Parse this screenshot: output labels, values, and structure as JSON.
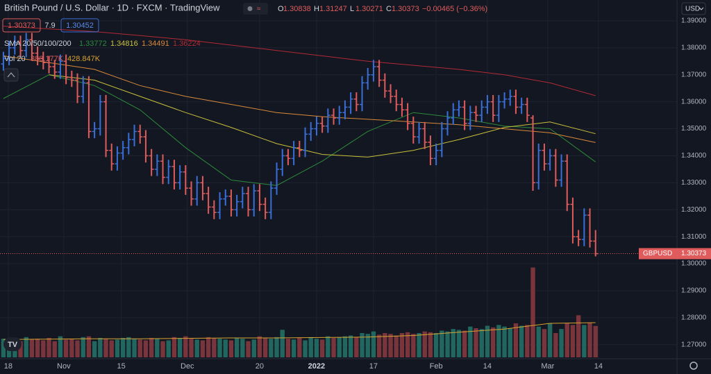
{
  "header": {
    "title": "British Pound / U.S. Dollar · 1D · FXCM · TradingView",
    "ohlc_letters": [
      "O",
      "H",
      "L",
      "C"
    ],
    "change": "−0.00465 (−0.36%)",
    "spread": "7.9",
    "ask": 1.30452
  },
  "chart_data": {
    "type": "ohlc",
    "symbol": "GBPUSD",
    "currency": "USD",
    "xlim": [
      -0.6,
      118.3
    ],
    "xticks": [
      {
        "value": 0.85,
        "label": "18"
      },
      {
        "value": 10.6,
        "label": "Nov"
      },
      {
        "value": 20.7,
        "label": "15"
      },
      {
        "value": 32.3,
        "label": "Dec"
      },
      {
        "value": 45,
        "label": "20"
      },
      {
        "value": 55,
        "label": "2022"
      },
      {
        "value": 65,
        "label": "17"
      },
      {
        "value": 76,
        "label": "Feb"
      },
      {
        "value": 85,
        "label": "14"
      },
      {
        "value": 95.6,
        "label": "Mar"
      },
      {
        "value": 104.5,
        "label": "14"
      }
    ],
    "ylim": [
      1.2648,
      1.3977
    ],
    "yticks": [
      {
        "value": 1.27,
        "label": "1.27000"
      },
      {
        "value": 1.28,
        "label": "1.28000"
      },
      {
        "value": 1.29,
        "label": "1.29000"
      },
      {
        "value": 1.3,
        "label": "1.30000"
      },
      {
        "value": 1.31,
        "label": "1.31000"
      },
      {
        "value": 1.32,
        "label": "1.32000"
      },
      {
        "value": 1.33,
        "label": "1.33000"
      },
      {
        "value": 1.34,
        "label": "1.34000"
      },
      {
        "value": 1.35,
        "label": "1.35000"
      },
      {
        "value": 1.36,
        "label": "1.36000"
      },
      {
        "value": 1.37,
        "label": "1.37000"
      },
      {
        "value": 1.38,
        "label": "1.38000"
      },
      {
        "value": 1.39,
        "label": "1.39000"
      }
    ],
    "up_color": "#3a6fd8",
    "down_color": "#e05c5c",
    "ohlc": [
      [
        1.374,
        1.3785,
        1.3715,
        1.376
      ],
      [
        1.376,
        1.3825,
        1.3735,
        1.38
      ],
      [
        1.38,
        1.3845,
        1.3775,
        1.382
      ],
      [
        1.382,
        1.3845,
        1.3765,
        1.379
      ],
      [
        1.379,
        1.3855,
        1.3765,
        1.383
      ],
      [
        1.383,
        1.3855,
        1.3755,
        1.378
      ],
      [
        1.378,
        1.3805,
        1.3735,
        1.376
      ],
      [
        1.376,
        1.3785,
        1.372,
        1.3745
      ],
      [
        1.3745,
        1.377,
        1.3705,
        1.373
      ],
      [
        1.373,
        1.3755,
        1.3685,
        1.371
      ],
      [
        1.371,
        1.3775,
        1.3685,
        1.375
      ],
      [
        1.375,
        1.3775,
        1.3665,
        1.369
      ],
      [
        1.369,
        1.3715,
        1.3655,
        1.368
      ],
      [
        1.368,
        1.3705,
        1.3595,
        1.362
      ],
      [
        1.362,
        1.3695,
        1.3595,
        1.367
      ],
      [
        1.367,
        1.3695,
        1.3465,
        1.349
      ],
      [
        1.349,
        1.3525,
        1.3465,
        1.35
      ],
      [
        1.35,
        1.3625,
        1.3475,
        1.36
      ],
      [
        1.36,
        1.3625,
        1.3395,
        1.342
      ],
      [
        1.342,
        1.3445,
        1.3345,
        1.337
      ],
      [
        1.337,
        1.3435,
        1.3345,
        1.341
      ],
      [
        1.341,
        1.3455,
        1.3385,
        1.343
      ],
      [
        1.343,
        1.3485,
        1.3405,
        1.346
      ],
      [
        1.346,
        1.3515,
        1.3435,
        1.349
      ],
      [
        1.349,
        1.3515,
        1.3445,
        1.347
      ],
      [
        1.347,
        1.3495,
        1.3375,
        1.34
      ],
      [
        1.34,
        1.3425,
        1.3325,
        1.335
      ],
      [
        1.335,
        1.3405,
        1.3325,
        1.338
      ],
      [
        1.338,
        1.3405,
        1.3295,
        1.332
      ],
      [
        1.332,
        1.3385,
        1.3295,
        1.336
      ],
      [
        1.336,
        1.3385,
        1.3275,
        1.33
      ],
      [
        1.33,
        1.3365,
        1.3275,
        1.334
      ],
      [
        1.334,
        1.3365,
        1.3255,
        1.328
      ],
      [
        1.328,
        1.3305,
        1.3215,
        1.324
      ],
      [
        1.324,
        1.3325,
        1.3215,
        1.33
      ],
      [
        1.33,
        1.3325,
        1.3235,
        1.326
      ],
      [
        1.326,
        1.3285,
        1.3185,
        1.321
      ],
      [
        1.321,
        1.3235,
        1.3165,
        1.319
      ],
      [
        1.319,
        1.3265,
        1.3165,
        1.324
      ],
      [
        1.324,
        1.3275,
        1.3215,
        1.325
      ],
      [
        1.325,
        1.3275,
        1.3175,
        1.32
      ],
      [
        1.32,
        1.3255,
        1.3175,
        1.323
      ],
      [
        1.323,
        1.3285,
        1.3205,
        1.326
      ],
      [
        1.326,
        1.3285,
        1.3175,
        1.32
      ],
      [
        1.32,
        1.3295,
        1.3175,
        1.327
      ],
      [
        1.327,
        1.3295,
        1.3195,
        1.322
      ],
      [
        1.322,
        1.3245,
        1.3165,
        1.319
      ],
      [
        1.319,
        1.3305,
        1.3165,
        1.328
      ],
      [
        1.328,
        1.3375,
        1.3255,
        1.335
      ],
      [
        1.335,
        1.3425,
        1.3325,
        1.34
      ],
      [
        1.34,
        1.3425,
        1.3365,
        1.339
      ],
      [
        1.339,
        1.3455,
        1.3365,
        1.343
      ],
      [
        1.343,
        1.3455,
        1.3395,
        1.342
      ],
      [
        1.342,
        1.3505,
        1.3395,
        1.348
      ],
      [
        1.348,
        1.3525,
        1.3455,
        1.35
      ],
      [
        1.35,
        1.3545,
        1.3475,
        1.352
      ],
      [
        1.352,
        1.3545,
        1.3485,
        1.351
      ],
      [
        1.351,
        1.3575,
        1.3485,
        1.355
      ],
      [
        1.355,
        1.3575,
        1.3515,
        1.354
      ],
      [
        1.354,
        1.3585,
        1.3515,
        1.356
      ],
      [
        1.356,
        1.3605,
        1.3535,
        1.358
      ],
      [
        1.358,
        1.3635,
        1.3555,
        1.361
      ],
      [
        1.361,
        1.3635,
        1.3565,
        1.359
      ],
      [
        1.359,
        1.3695,
        1.3565,
        1.367
      ],
      [
        1.367,
        1.3725,
        1.3645,
        1.37
      ],
      [
        1.37,
        1.3755,
        1.3675,
        1.373
      ],
      [
        1.373,
        1.3755,
        1.3655,
        1.368
      ],
      [
        1.368,
        1.3705,
        1.3615,
        1.364
      ],
      [
        1.364,
        1.3665,
        1.3595,
        1.362
      ],
      [
        1.362,
        1.3645,
        1.3565,
        1.359
      ],
      [
        1.359,
        1.3615,
        1.3545,
        1.357
      ],
      [
        1.357,
        1.3595,
        1.3495,
        1.352
      ],
      [
        1.352,
        1.3545,
        1.3445,
        1.347
      ],
      [
        1.347,
        1.3525,
        1.3445,
        1.35
      ],
      [
        1.35,
        1.3525,
        1.3425,
        1.345
      ],
      [
        1.345,
        1.3475,
        1.3365,
        1.339
      ],
      [
        1.339,
        1.3445,
        1.3365,
        1.342
      ],
      [
        1.342,
        1.3525,
        1.3395,
        1.35
      ],
      [
        1.35,
        1.3565,
        1.3475,
        1.354
      ],
      [
        1.354,
        1.3595,
        1.3515,
        1.357
      ],
      [
        1.357,
        1.3605,
        1.3545,
        1.358
      ],
      [
        1.358,
        1.3605,
        1.3495,
        1.352
      ],
      [
        1.352,
        1.3585,
        1.3495,
        1.356
      ],
      [
        1.356,
        1.3585,
        1.3525,
        1.355
      ],
      [
        1.355,
        1.3605,
        1.3525,
        1.358
      ],
      [
        1.358,
        1.3625,
        1.3555,
        1.36
      ],
      [
        1.36,
        1.3625,
        1.3525,
        1.355
      ],
      [
        1.355,
        1.3625,
        1.3525,
        1.36
      ],
      [
        1.36,
        1.3635,
        1.3575,
        1.361
      ],
      [
        1.361,
        1.3645,
        1.3585,
        1.362
      ],
      [
        1.362,
        1.3645,
        1.3555,
        1.358
      ],
      [
        1.358,
        1.3615,
        1.3555,
        1.359
      ],
      [
        1.359,
        1.3615,
        1.3525,
        1.355
      ],
      [
        1.354,
        1.355,
        1.327,
        1.33
      ],
      [
        1.33,
        1.3445,
        1.3275,
        1.342
      ],
      [
        1.342,
        1.3445,
        1.3345,
        1.337
      ],
      [
        1.337,
        1.3425,
        1.3345,
        1.34
      ],
      [
        1.34,
        1.3425,
        1.3285,
        1.331
      ],
      [
        1.331,
        1.3405,
        1.3285,
        1.338
      ],
      [
        1.338,
        1.3405,
        1.3195,
        1.322
      ],
      [
        1.322,
        1.3245,
        1.3075,
        1.31
      ],
      [
        1.31,
        1.3125,
        1.3065,
        1.309
      ],
      [
        1.309,
        1.3205,
        1.3065,
        1.318
      ],
      [
        1.318,
        1.3205,
        1.306,
        1.3084
      ],
      [
        1.30838,
        1.31247,
        1.30271,
        1.30373
      ]
    ],
    "sma": {
      "legend": "SMA 20/50/100/200",
      "x": [
        0,
        8,
        16,
        24,
        32,
        40,
        48,
        56,
        64,
        72,
        80,
        88,
        96,
        104
      ],
      "series": [
        {
          "color": "#2e8b3a",
          "values": [
            1.3612,
            1.37,
            1.366,
            1.357,
            1.343,
            1.331,
            1.329,
            1.338,
            1.349,
            1.356,
            1.354,
            1.351,
            1.35,
            1.33772
          ]
        },
        {
          "color": "#c9c13a",
          "values": [
            null,
            1.37,
            1.368,
            1.362,
            1.356,
            1.3505,
            1.3445,
            1.3405,
            1.3395,
            1.342,
            1.346,
            1.3505,
            1.3525,
            1.34816
          ]
        },
        {
          "color": "#d98a3a",
          "values": [
            1.377,
            1.3745,
            1.372,
            1.366,
            1.362,
            1.359,
            1.356,
            1.3545,
            1.3535,
            1.3525,
            1.3515,
            1.35,
            1.3485,
            1.34491
          ]
        },
        {
          "color": "#b22a35",
          "values": [
            1.388,
            1.387,
            1.386,
            1.3845,
            1.383,
            1.381,
            1.379,
            1.377,
            1.375,
            1.3735,
            1.372,
            1.37,
            1.367,
            1.36224
          ]
        }
      ]
    },
    "volume": {
      "legend": "Vol 20",
      "lim": [
        0,
        1200
      ],
      "up_color": "#22675f",
      "down_color": "#7a343c",
      "ma_color": "#d9a22e",
      "value_label": "388.177K",
      "ma_label": "428.847K",
      "values": [
        230,
        210,
        240,
        200,
        250,
        220,
        230,
        210,
        240,
        200,
        260,
        220,
        230,
        210,
        250,
        260,
        200,
        240,
        230,
        210,
        220,
        240,
        250,
        230,
        220,
        210,
        240,
        230,
        200,
        210,
        250,
        240,
        260,
        230,
        220,
        210,
        250,
        240,
        230,
        220,
        210,
        240,
        230,
        200,
        220,
        260,
        240,
        230,
        250,
        340,
        230,
        220,
        240,
        210,
        250,
        230,
        220,
        260,
        240,
        250,
        260,
        270,
        250,
        300,
        290,
        320,
        280,
        300,
        290,
        270,
        300,
        310,
        290,
        300,
        320,
        310,
        300,
        330,
        320,
        350,
        340,
        330,
        380,
        360,
        350,
        390,
        370,
        400,
        380,
        360,
        420,
        390,
        400,
        1110,
        380,
        350,
        420,
        300,
        350,
        420,
        400,
        520,
        400,
        430,
        388.177
      ],
      "ma_x": [
        0,
        8,
        16,
        24,
        32,
        40,
        48,
        56,
        64,
        72,
        80,
        88,
        96,
        104
      ],
      "ma_values": [
        220,
        225,
        230,
        230,
        235,
        240,
        240,
        245,
        250,
        270,
        310,
        350,
        420,
        428.847
      ]
    }
  }
}
